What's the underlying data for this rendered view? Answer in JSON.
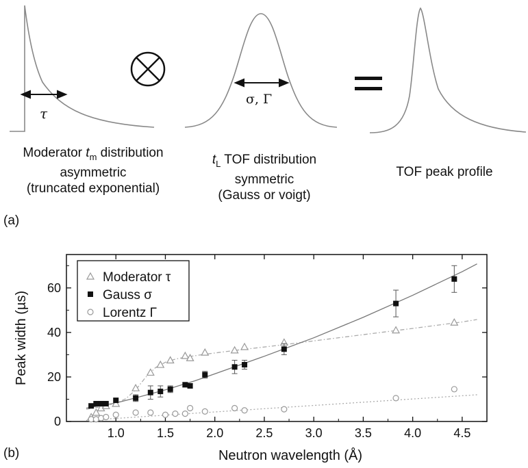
{
  "panel_a": {
    "label": "(a)",
    "tau_symbol": "τ",
    "sigma_gamma_label": "σ, Γ",
    "captions": {
      "moderator": {
        "line1_pre": "Moderator ",
        "line1_var": "t",
        "line1_sub": "m",
        "line1_post": " distribution",
        "line2": "asymmetric",
        "line3": "(truncated exponential)"
      },
      "tof": {
        "line1_var": "t",
        "line1_sub": "L",
        "line1_post": " TOF distribution",
        "line2": "symmetric",
        "line3": "(Gauss or voigt)"
      },
      "result": {
        "line1": "TOF peak profile"
      }
    }
  },
  "panel_b": {
    "label": "(b)"
  },
  "chart_data": {
    "type": "scatter",
    "xlabel": "Neutron wavelength (Å)",
    "ylabel": "Peak width (µs)",
    "xlim": [
      0.5,
      4.75
    ],
    "ylim": [
      0,
      75
    ],
    "xticks": [
      "1.0",
      "1.5",
      "2.0",
      "2.5",
      "3.0",
      "3.5",
      "4.0",
      "4.5"
    ],
    "xtick_values": [
      1.0,
      1.5,
      2.0,
      2.5,
      3.0,
      3.5,
      4.0,
      4.5
    ],
    "yticks": [
      "0",
      "20",
      "40",
      "60"
    ],
    "ytick_values": [
      0,
      20,
      40,
      60
    ],
    "grid": false,
    "legend_position": "top-left",
    "series": [
      {
        "name": "Moderator τ",
        "marker": "triangle-open",
        "color": "#999999",
        "x": [
          0.75,
          0.8,
          0.85,
          0.9,
          1.0,
          1.2,
          1.35,
          1.45,
          1.55,
          1.7,
          1.75,
          1.9,
          2.2,
          2.3,
          2.7,
          3.83,
          4.42
        ],
        "y": [
          2,
          4,
          6,
          7,
          8,
          15,
          22,
          25.5,
          27.5,
          29.5,
          28.5,
          31,
          32,
          33.5,
          35.5,
          41,
          44.5
        ],
        "fit_line": {
          "style": "dash-dot",
          "x": [
            0.7,
            0.9,
            1.0,
            1.1,
            1.2,
            1.3,
            1.4,
            1.5,
            1.6,
            1.7,
            1.9,
            2.2,
            2.7,
            3.0,
            3.5,
            4.0,
            4.5,
            4.65
          ],
          "y": [
            5.5,
            7,
            8.2,
            10.2,
            14.2,
            19.8,
            24.2,
            26.6,
            28.0,
            28.9,
            30.2,
            31.9,
            34.5,
            36.2,
            39.0,
            41.8,
            44.7,
            45.8
          ]
        }
      },
      {
        "name": "Gauss σ",
        "marker": "square-filled",
        "color": "#111111",
        "x": [
          0.75,
          0.8,
          0.85,
          0.9,
          1.0,
          1.2,
          1.35,
          1.45,
          1.55,
          1.7,
          1.75,
          1.9,
          2.2,
          2.3,
          2.7,
          3.83,
          4.42
        ],
        "y": [
          7,
          8,
          8,
          8,
          9.5,
          10.5,
          13,
          13.5,
          14.5,
          16.5,
          16,
          21,
          24.5,
          25.5,
          32.5,
          53,
          64
        ],
        "error": [
          0,
          0,
          0,
          0,
          0,
          1.5,
          3,
          2.5,
          1.5,
          1,
          1,
          1.5,
          3,
          2,
          2.5,
          6,
          6
        ],
        "fit_line": {
          "style": "solid",
          "x": [
            0.7,
            1.0,
            1.2,
            1.5,
            1.8,
            2.0,
            2.5,
            3.0,
            3.5,
            4.0,
            4.5,
            4.65
          ],
          "y": [
            6,
            8.3,
            10.6,
            14.2,
            18.3,
            21.4,
            29.3,
            37.6,
            46.8,
            56.7,
            67.3,
            70.8
          ]
        }
      },
      {
        "name": "Lorentz Γ",
        "marker": "circle-open",
        "color": "#999999",
        "x": [
          0.75,
          0.8,
          0.85,
          0.9,
          1.0,
          1.2,
          1.35,
          1.5,
          1.6,
          1.7,
          1.75,
          1.9,
          2.2,
          2.3,
          2.7,
          3.83,
          4.42
        ],
        "y": [
          1,
          1,
          1.5,
          2,
          3,
          4,
          4,
          3,
          3.5,
          3.5,
          6,
          4.5,
          6,
          5,
          5.5,
          10.5,
          14.5
        ],
        "fit_line": {
          "style": "dotted",
          "x": [
            0.7,
            4.65
          ],
          "y": [
            0.5,
            12
          ]
        }
      }
    ]
  }
}
